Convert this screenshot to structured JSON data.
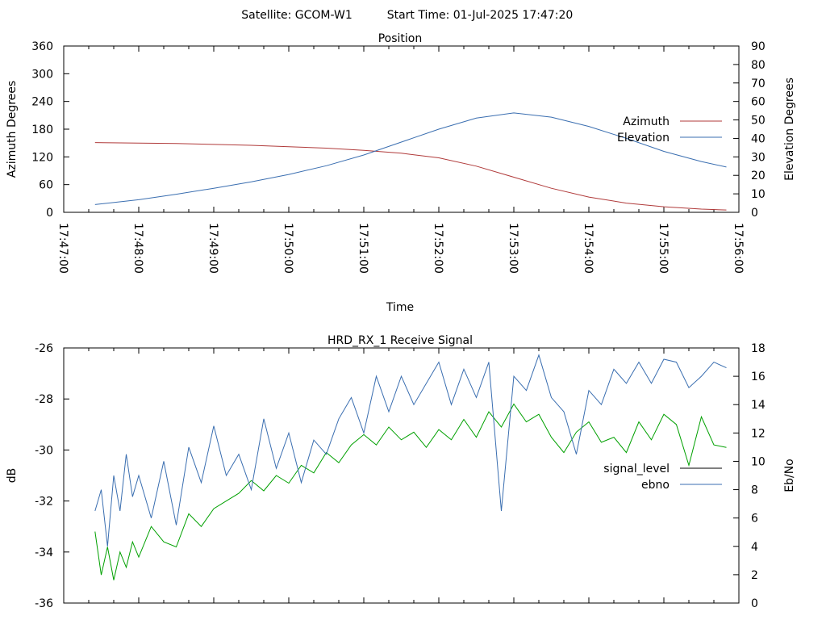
{
  "header": {
    "satellite": "Satellite: GCOM-W1",
    "start_time": "Start Time: 01-Jul-2025 17:47:20"
  },
  "colors": {
    "azimuth": "#b03a3a",
    "elevation": "#3a6eb0",
    "signal_level": "#000000",
    "signal_green": "#00a000",
    "ebno": "#3a6eb0"
  },
  "chart_data": [
    {
      "type": "line",
      "title": "Position",
      "xlabel": "Time",
      "ylabel": "Azimuth Degrees",
      "y2label": "Elevation Degrees",
      "xlim": [
        "17:47:00",
        "17:56:00"
      ],
      "x_ticks": [
        "17:47:00",
        "17:48:00",
        "17:49:00",
        "17:50:00",
        "17:51:00",
        "17:52:00",
        "17:53:00",
        "17:54:00",
        "17:55:00",
        "17:56:00"
      ],
      "ylim": [
        0,
        360
      ],
      "y_ticks": [
        0,
        60,
        120,
        180,
        240,
        300,
        360
      ],
      "y2lim": [
        0,
        90
      ],
      "y2_ticks": [
        0,
        10,
        20,
        30,
        40,
        50,
        60,
        70,
        80,
        90
      ],
      "legend_position": "right",
      "grid": false,
      "series": [
        {
          "name": "Azimuth",
          "axis": "y",
          "color_key": "azimuth",
          "x": [
            "17:47:25",
            "17:48:00",
            "17:48:30",
            "17:49:00",
            "17:49:30",
            "17:50:00",
            "17:50:30",
            "17:51:00",
            "17:51:30",
            "17:52:00",
            "17:52:30",
            "17:53:00",
            "17:53:30",
            "17:54:00",
            "17:54:30",
            "17:55:00",
            "17:55:30",
            "17:55:50"
          ],
          "values": [
            151,
            150,
            149,
            147,
            145,
            142,
            139,
            134,
            128,
            118,
            100,
            76,
            52,
            33,
            20,
            12,
            7,
            5
          ]
        },
        {
          "name": "Elevation",
          "axis": "y2",
          "color_key": "elevation",
          "x": [
            "17:47:25",
            "17:48:00",
            "17:48:30",
            "17:49:00",
            "17:49:30",
            "17:50:00",
            "17:50:30",
            "17:51:00",
            "17:51:30",
            "17:52:00",
            "17:52:30",
            "17:53:00",
            "17:53:30",
            "17:54:00",
            "17:54:30",
            "17:55:00",
            "17:55:30",
            "17:55:50"
          ],
          "values": [
            4.2,
            6.8,
            9.8,
            13.0,
            16.5,
            20.5,
            25.2,
            31.0,
            38.0,
            45.0,
            51.0,
            53.8,
            51.5,
            46.5,
            40.0,
            33.0,
            27.5,
            24.5
          ]
        }
      ]
    },
    {
      "type": "line",
      "title": "HRD_RX_1 Receive Signal",
      "xlabel": "",
      "ylabel": "dB",
      "y2label": "Eb/No",
      "xlim": [
        "17:47:00",
        "17:56:00"
      ],
      "ylim": [
        -36,
        -26
      ],
      "y_ticks": [
        -36,
        -34,
        -32,
        -30,
        -28,
        -26
      ],
      "y2lim": [
        0,
        18
      ],
      "y2_ticks": [
        0,
        2,
        4,
        6,
        8,
        10,
        12,
        14,
        16,
        18
      ],
      "legend_position": "right",
      "grid": false,
      "series": [
        {
          "name": "signal_level",
          "axis": "y",
          "color_key": "signal_green",
          "x": [
            "17:47:25",
            "17:47:30",
            "17:47:35",
            "17:47:40",
            "17:47:45",
            "17:47:50",
            "17:47:55",
            "17:48:00",
            "17:48:10",
            "17:48:20",
            "17:48:30",
            "17:48:40",
            "17:48:50",
            "17:49:00",
            "17:49:10",
            "17:49:20",
            "17:49:30",
            "17:49:40",
            "17:49:50",
            "17:50:00",
            "17:50:10",
            "17:50:20",
            "17:50:30",
            "17:50:40",
            "17:50:50",
            "17:51:00",
            "17:51:10",
            "17:51:20",
            "17:51:30",
            "17:51:40",
            "17:51:50",
            "17:52:00",
            "17:52:10",
            "17:52:20",
            "17:52:30",
            "17:52:40",
            "17:52:50",
            "17:53:00",
            "17:53:10",
            "17:53:20",
            "17:53:30",
            "17:53:40",
            "17:53:50",
            "17:54:00",
            "17:54:10",
            "17:54:20",
            "17:54:30",
            "17:54:40",
            "17:54:50",
            "17:55:00",
            "17:55:10",
            "17:55:20",
            "17:55:30",
            "17:55:40",
            "17:55:50"
          ],
          "values": [
            -33.2,
            -34.9,
            -33.8,
            -35.1,
            -34.0,
            -34.6,
            -33.6,
            -34.2,
            -33.0,
            -33.6,
            -33.8,
            -32.5,
            -33.0,
            -32.3,
            -32.0,
            -31.7,
            -31.2,
            -31.6,
            -31.0,
            -31.3,
            -30.6,
            -30.9,
            -30.1,
            -30.5,
            -29.8,
            -29.4,
            -29.8,
            -29.1,
            -29.6,
            -29.3,
            -29.9,
            -29.2,
            -29.6,
            -28.8,
            -29.5,
            -28.5,
            -29.1,
            -28.2,
            -28.9,
            -28.6,
            -29.5,
            -30.1,
            -29.3,
            -28.9,
            -29.7,
            -29.5,
            -30.1,
            -28.9,
            -29.6,
            -28.6,
            -29.0,
            -30.6,
            -28.7,
            -29.8,
            -29.9
          ]
        },
        {
          "name": "ebno",
          "axis": "y2",
          "color_key": "ebno",
          "x": [
            "17:47:25",
            "17:47:30",
            "17:47:35",
            "17:47:40",
            "17:47:45",
            "17:47:50",
            "17:47:55",
            "17:48:00",
            "17:48:10",
            "17:48:20",
            "17:48:30",
            "17:48:40",
            "17:48:50",
            "17:49:00",
            "17:49:10",
            "17:49:20",
            "17:49:30",
            "17:49:40",
            "17:49:50",
            "17:50:00",
            "17:50:10",
            "17:50:20",
            "17:50:30",
            "17:50:40",
            "17:50:50",
            "17:51:00",
            "17:51:10",
            "17:51:20",
            "17:51:30",
            "17:51:40",
            "17:51:50",
            "17:52:00",
            "17:52:10",
            "17:52:20",
            "17:52:30",
            "17:52:40",
            "17:52:50",
            "17:53:00",
            "17:53:10",
            "17:53:20",
            "17:53:30",
            "17:53:40",
            "17:53:50",
            "17:54:00",
            "17:54:10",
            "17:54:20",
            "17:54:30",
            "17:54:40",
            "17:54:50",
            "17:55:00",
            "17:55:10",
            "17:55:20",
            "17:55:30",
            "17:55:40",
            "17:55:50"
          ],
          "values": [
            6.5,
            8.0,
            4.0,
            9.0,
            6.5,
            10.5,
            7.5,
            9.0,
            6.0,
            10.0,
            5.5,
            11.0,
            8.5,
            12.5,
            9.0,
            10.5,
            8.0,
            13.0,
            9.5,
            12.0,
            8.5,
            11.5,
            10.5,
            13.0,
            14.5,
            12.0,
            16.0,
            13.5,
            16.0,
            14.0,
            15.5,
            17.0,
            14.0,
            16.5,
            14.5,
            17.0,
            6.5,
            16.0,
            15.0,
            17.5,
            14.5,
            13.5,
            10.5,
            15.0,
            14.0,
            16.5,
            15.5,
            17.0,
            15.5,
            17.2,
            17.0,
            15.2,
            16.0,
            17.0,
            16.6
          ]
        }
      ]
    }
  ]
}
